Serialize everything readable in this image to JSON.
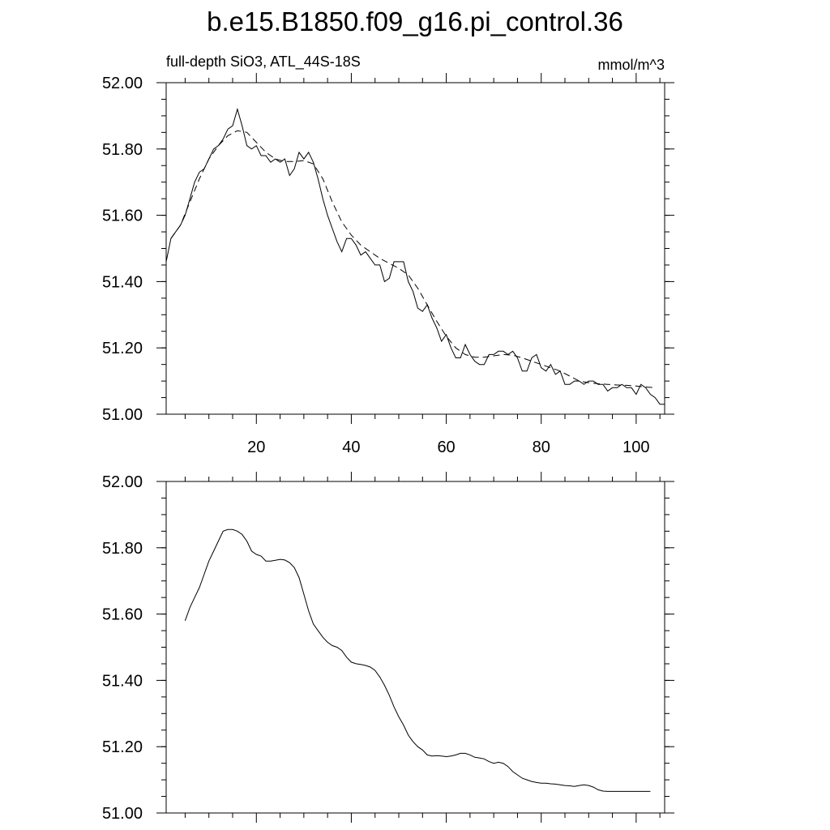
{
  "title": "b.e15.B1850.f09_g16.pi_control.36",
  "chart_data": [
    {
      "type": "line",
      "subtitle_left": "full-depth SiO3, ATL_44S-18S",
      "subtitle_right": "mmol/m^3",
      "xlim": [
        1,
        106
      ],
      "ylim": [
        51.0,
        52.0
      ],
      "x_ticks": [
        20,
        40,
        60,
        80,
        100
      ],
      "x_tick_labels": [
        "20",
        "40",
        "60",
        "80",
        "100"
      ],
      "y_ticks": [
        51.0,
        51.2,
        51.4,
        51.6,
        51.8,
        52.0
      ],
      "y_tick_labels": [
        "51.00",
        "51.20",
        "51.40",
        "51.60",
        "51.80",
        "52.00"
      ],
      "series": [
        {
          "style": "solid",
          "x": [
            1,
            2,
            3,
            4,
            5,
            6,
            7,
            8,
            9,
            10,
            11,
            12,
            13,
            14,
            15,
            16,
            17,
            18,
            19,
            20,
            21,
            22,
            23,
            24,
            25,
            26,
            27,
            28,
            29,
            30,
            31,
            32,
            33,
            34,
            35,
            36,
            37,
            38,
            39,
            40,
            41,
            42,
            43,
            44,
            45,
            46,
            47,
            48,
            49,
            50,
            51,
            52,
            53,
            54,
            55,
            56,
            57,
            58,
            59,
            60,
            61,
            62,
            63,
            64,
            65,
            66,
            67,
            68,
            69,
            70,
            71,
            72,
            73,
            74,
            75,
            76,
            77,
            78,
            79,
            80,
            81,
            82,
            83,
            84,
            85,
            86,
            87,
            88,
            89,
            90,
            91,
            92,
            93,
            94,
            95,
            96,
            97,
            98,
            99,
            100,
            101,
            102,
            103,
            104,
            105,
            106
          ],
          "values": [
            51.46,
            51.53,
            51.55,
            51.57,
            51.6,
            51.65,
            51.7,
            51.73,
            51.74,
            51.77,
            51.8,
            51.81,
            51.83,
            51.86,
            51.87,
            51.92,
            51.87,
            51.81,
            51.8,
            51.81,
            51.78,
            51.78,
            51.76,
            51.77,
            51.76,
            51.77,
            51.72,
            51.74,
            51.79,
            51.77,
            51.79,
            51.76,
            51.71,
            51.65,
            51.6,
            51.56,
            51.52,
            51.49,
            51.53,
            51.53,
            51.51,
            51.48,
            51.49,
            51.47,
            51.45,
            51.45,
            51.4,
            51.41,
            51.46,
            51.46,
            51.46,
            51.4,
            51.37,
            51.32,
            51.31,
            51.33,
            51.29,
            51.26,
            51.22,
            51.24,
            51.2,
            51.17,
            51.17,
            51.21,
            51.18,
            51.16,
            51.15,
            51.15,
            51.18,
            51.18,
            51.19,
            51.19,
            51.18,
            51.19,
            51.17,
            51.13,
            51.13,
            51.17,
            51.18,
            51.14,
            51.13,
            51.15,
            51.12,
            51.13,
            51.09,
            51.09,
            51.1,
            51.1,
            51.09,
            51.1,
            51.1,
            51.09,
            51.09,
            51.07,
            51.08,
            51.08,
            51.09,
            51.08,
            51.08,
            51.06,
            51.09,
            51.08,
            51.06,
            51.05,
            51.03,
            51.03
          ]
        },
        {
          "style": "dashed",
          "x": [
            2,
            4,
            6,
            8,
            10,
            12,
            14,
            16,
            18,
            20,
            22,
            24,
            26,
            28,
            30,
            32,
            34,
            36,
            38,
            40,
            42,
            44,
            46,
            48,
            50,
            52,
            54,
            56,
            58,
            60,
            62,
            64,
            66,
            68,
            70,
            72,
            74,
            76,
            78,
            80,
            82,
            84,
            86,
            88,
            90,
            92,
            94,
            96,
            98,
            100,
            102,
            104
          ],
          "values": [
            51.53,
            51.57,
            51.64,
            51.71,
            51.77,
            51.81,
            51.84,
            51.855,
            51.85,
            51.82,
            51.79,
            51.77,
            51.762,
            51.762,
            51.765,
            51.755,
            51.71,
            51.64,
            51.58,
            51.54,
            51.51,
            51.49,
            51.47,
            51.455,
            51.44,
            51.42,
            51.38,
            51.33,
            51.28,
            51.235,
            51.2,
            51.18,
            51.172,
            51.172,
            51.176,
            51.18,
            51.178,
            51.17,
            51.16,
            51.15,
            51.14,
            51.13,
            51.115,
            51.1,
            51.095,
            51.092,
            51.09,
            51.088,
            51.087,
            51.085,
            51.082,
            51.08
          ]
        }
      ]
    },
    {
      "type": "line",
      "xlim": [
        1,
        106
      ],
      "ylim": [
        51.0,
        52.0
      ],
      "x_ticks": [
        20,
        40,
        60,
        80,
        100
      ],
      "y_ticks": [
        51.0,
        51.2,
        51.4,
        51.6,
        51.8,
        52.0
      ],
      "y_tick_labels": [
        "51.00",
        "51.20",
        "51.40",
        "51.60",
        "51.80",
        "52.00"
      ],
      "series": [
        {
          "style": "solid",
          "x": [
            5,
            6,
            7,
            8,
            9,
            10,
            11,
            12,
            13,
            14,
            15,
            16,
            17,
            18,
            19,
            20,
            21,
            22,
            23,
            24,
            25,
            26,
            27,
            28,
            29,
            30,
            31,
            32,
            33,
            34,
            35,
            36,
            37,
            38,
            39,
            40,
            41,
            42,
            43,
            44,
            45,
            46,
            47,
            48,
            49,
            50,
            51,
            52,
            53,
            54,
            55,
            56,
            57,
            58,
            59,
            60,
            61,
            62,
            63,
            64,
            65,
            66,
            67,
            68,
            69,
            70,
            71,
            72,
            73,
            74,
            75,
            76,
            77,
            78,
            79,
            80,
            81,
            82,
            83,
            84,
            85,
            86,
            87,
            88,
            89,
            90,
            91,
            92,
            93,
            94,
            95,
            96,
            97,
            98,
            99,
            100,
            101,
            102,
            103
          ],
          "values": [
            51.58,
            51.62,
            51.65,
            51.68,
            51.72,
            51.76,
            51.79,
            51.82,
            51.85,
            51.855,
            51.855,
            51.85,
            51.84,
            51.82,
            51.79,
            51.78,
            51.775,
            51.76,
            51.76,
            51.762,
            51.765,
            51.763,
            51.755,
            51.74,
            51.71,
            51.66,
            51.61,
            51.57,
            51.55,
            51.53,
            51.515,
            51.505,
            51.5,
            51.49,
            51.47,
            51.455,
            51.45,
            51.448,
            51.445,
            51.44,
            51.43,
            51.41,
            51.385,
            51.355,
            51.32,
            51.29,
            51.265,
            51.235,
            51.215,
            51.2,
            51.19,
            51.175,
            51.172,
            51.173,
            51.172,
            51.17,
            51.172,
            51.175,
            51.18,
            51.18,
            51.175,
            51.168,
            51.166,
            51.163,
            51.155,
            51.15,
            51.153,
            51.15,
            51.14,
            51.125,
            51.115,
            51.105,
            51.1,
            51.095,
            51.092,
            51.09,
            51.09,
            51.088,
            51.087,
            51.085,
            51.083,
            51.082,
            51.08,
            51.083,
            51.085,
            51.083,
            51.078,
            51.07,
            51.066,
            51.065,
            51.065,
            51.065,
            51.065,
            51.065,
            51.065,
            51.065,
            51.065,
            51.065,
            51.065
          ]
        }
      ]
    }
  ]
}
